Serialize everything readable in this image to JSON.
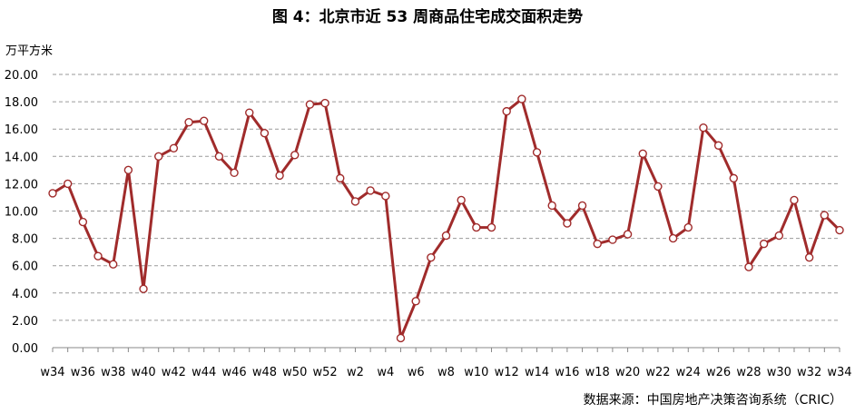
{
  "chart_data": {
    "type": "line",
    "title": "图 4：北京市近 53 周商品住宅成交面积走势",
    "ylabel": "万平方米",
    "ylim": [
      0,
      20
    ],
    "ytick_labels": [
      "0.00",
      "2.00",
      "4.00",
      "6.00",
      "8.00",
      "10.00",
      "12.00",
      "14.00",
      "16.00",
      "18.00",
      "20.00"
    ],
    "x": [
      "w34",
      "w35",
      "w36",
      "w37",
      "w38",
      "w39",
      "w40",
      "w41",
      "w42",
      "w43",
      "w44",
      "w45",
      "w46",
      "w47",
      "w48",
      "w49",
      "w50",
      "w51",
      "w52",
      "w1",
      "w2",
      "w3",
      "w4",
      "w5",
      "w6",
      "w7",
      "w8",
      "w9",
      "w10",
      "w11",
      "w12",
      "w13",
      "w14",
      "w15",
      "w16",
      "w17",
      "w18",
      "w19",
      "w20",
      "w21",
      "w22",
      "w23",
      "w24",
      "w25",
      "w26",
      "w27",
      "w28",
      "w29",
      "w30",
      "w31",
      "w32",
      "w33",
      "w34"
    ],
    "xtick_labels": [
      "w34",
      "w36",
      "w38",
      "w40",
      "w42",
      "w44",
      "w46",
      "w48",
      "w50",
      "w52",
      "w2",
      "w4",
      "w6",
      "w8",
      "w10",
      "w12",
      "w14",
      "w16",
      "w18",
      "w20",
      "w22",
      "w24",
      "w26",
      "w28",
      "w30",
      "w32",
      "w34"
    ],
    "series": [
      {
        "values": [
          11.3,
          12.0,
          9.2,
          6.7,
          6.1,
          13.0,
          4.3,
          14.0,
          14.6,
          16.5,
          16.6,
          14.0,
          12.8,
          17.2,
          15.7,
          12.6,
          14.1,
          17.8,
          17.9,
          12.4,
          10.7,
          11.5,
          11.1,
          0.7,
          3.4,
          6.6,
          8.2,
          10.8,
          8.8,
          8.8,
          17.3,
          18.2,
          14.3,
          10.4,
          9.1,
          10.4,
          7.6,
          7.9,
          8.3,
          14.2,
          11.8,
          8.0,
          8.8,
          16.1,
          14.8,
          12.4,
          5.9,
          7.6,
          8.2,
          10.8,
          6.6,
          9.7,
          8.6
        ]
      }
    ],
    "grid": "horizontal dashed",
    "colors": {
      "line": "#A02B2B",
      "marker_fill": "#FFFFFF"
    }
  },
  "source_text": "数据来源：中国房地产决策咨询系统（CRIC）"
}
